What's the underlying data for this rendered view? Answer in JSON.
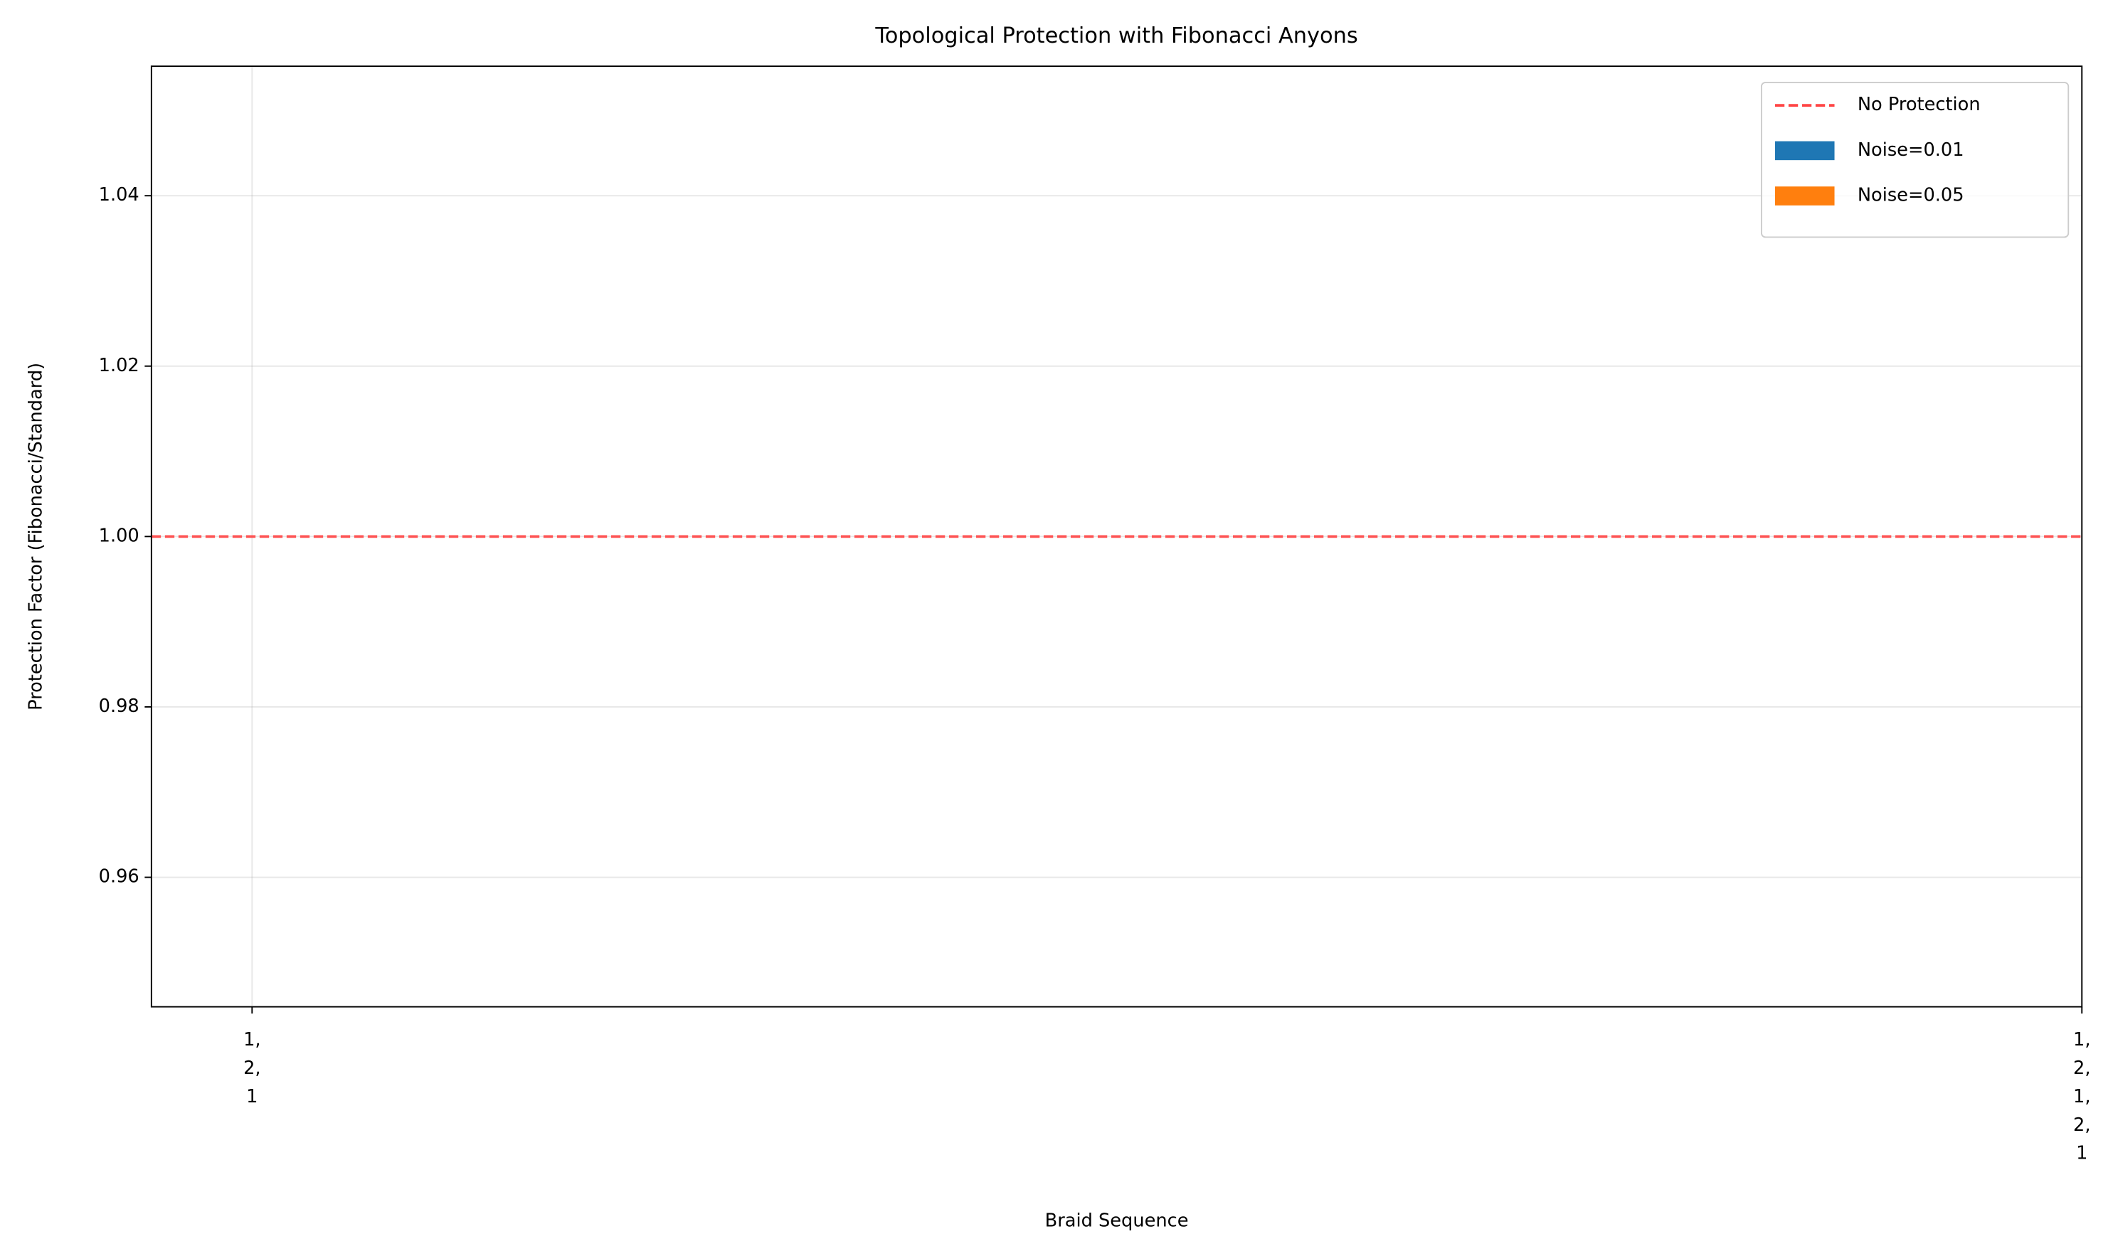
{
  "chart_data": {
    "type": "bar",
    "title": "Topological Protection with Fibonacci Anyons",
    "xlabel": "Braid Sequence",
    "ylabel": "Protection Factor (Fibonacci/Standard)",
    "categories": [
      "1,\n2,\n1",
      "1,\n2,\n1,\n2,\n1"
    ],
    "xlim": [
      -0.055,
      1.0
    ],
    "series": [
      {
        "name": "Noise=0.01",
        "color": "#1f77b4",
        "values": [
          null,
          null
        ]
      },
      {
        "name": "Noise=0.05",
        "color": "#ff7f0e",
        "values": [
          null,
          null
        ]
      }
    ],
    "hlines": [
      {
        "name": "No Protection",
        "value": 1,
        "color": "#ff4444",
        "style": "dashed"
      }
    ],
    "ylim": [
      0.9448,
      1.0552
    ],
    "yticks": [
      0.96,
      0.98,
      {
        "value": 1,
        "label": "1.00"
      },
      1.02,
      1.04
    ],
    "grid": true,
    "legend": "upper right"
  }
}
